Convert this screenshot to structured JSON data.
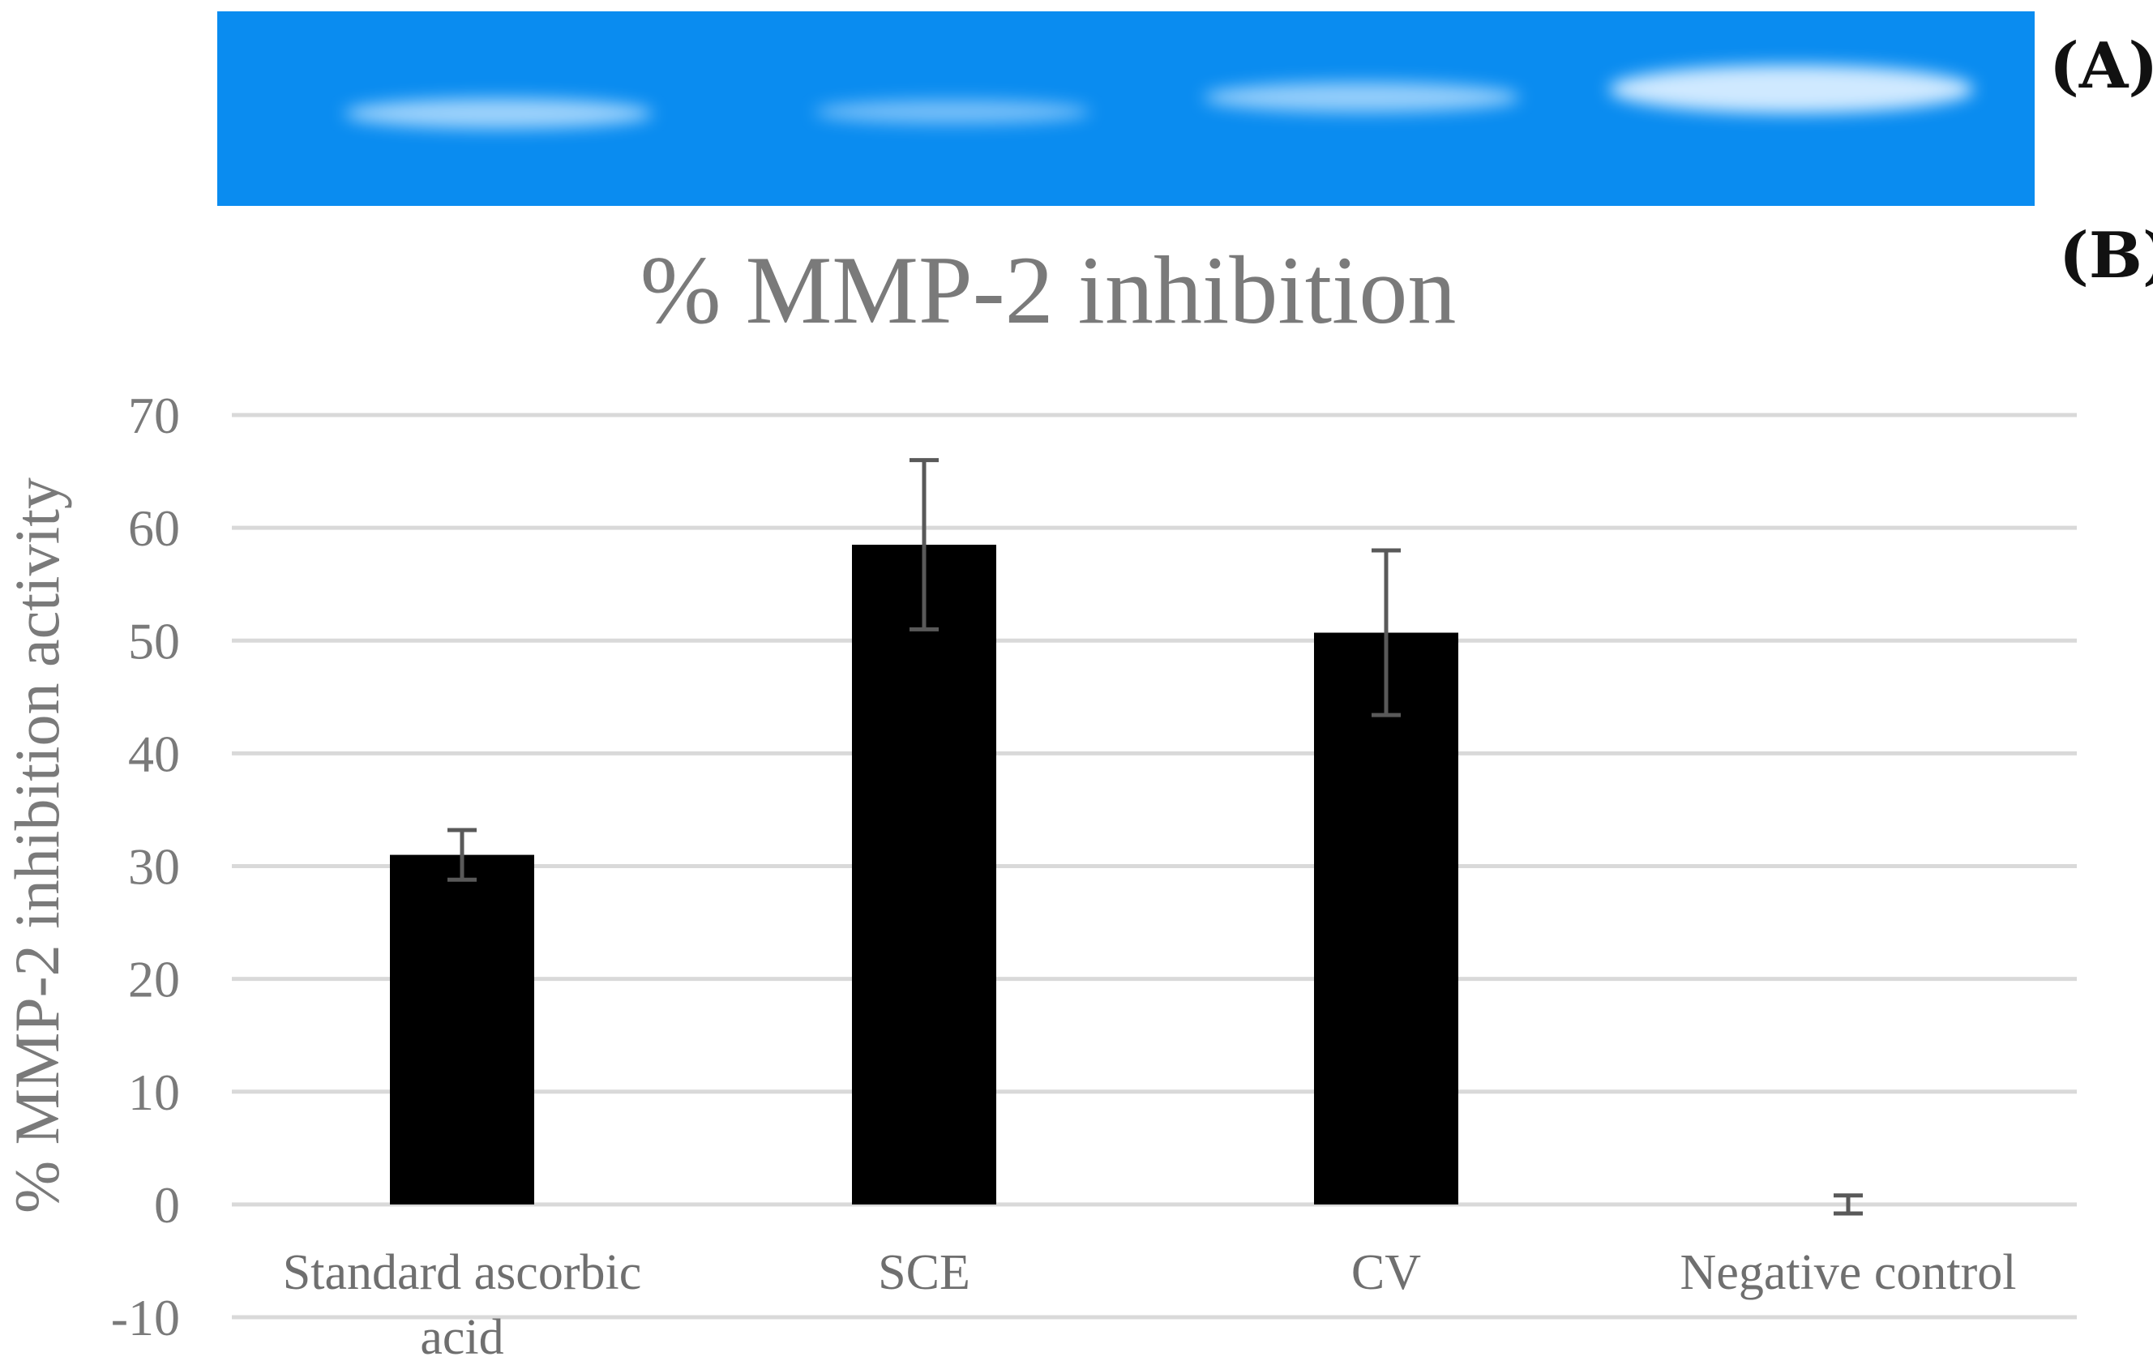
{
  "panels": {
    "a": "(A)",
    "b": "(B)"
  },
  "colors": {
    "gel_blue": "#0a8cf0",
    "gel_band": "#cfe9ff",
    "bar": "#000000",
    "grid": "#d9d9d9",
    "error_bar": "#595959",
    "text": "#7a7a7a"
  },
  "gel": {
    "lanes": [
      "Standard ascorbic acid",
      "SCE",
      "CV",
      "Negative control"
    ],
    "band_intensity": [
      0.75,
      0.55,
      0.7,
      1.0
    ]
  },
  "chart_data": {
    "type": "bar",
    "title": "% MMP-2 inhibition",
    "xlabel": "",
    "ylabel": "% MMP-2 inhibition activity",
    "categories": [
      [
        "Standard ascorbic",
        "acid"
      ],
      [
        "SCE"
      ],
      [
        "CV"
      ],
      [
        "Negative control"
      ]
    ],
    "values": [
      31,
      58.5,
      50.7,
      0
    ],
    "errors": [
      2.2,
      7.5,
      7.3,
      0.8
    ],
    "ylim": [
      -10,
      70
    ],
    "yticks": [
      -10,
      0,
      10,
      20,
      30,
      40,
      50,
      60,
      70
    ],
    "grid": true
  }
}
